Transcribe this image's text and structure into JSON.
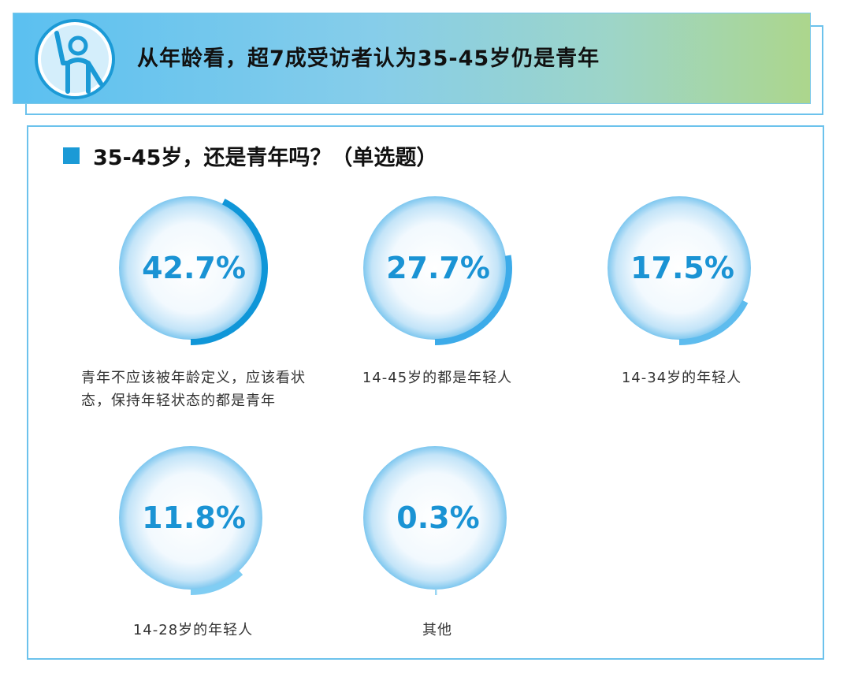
{
  "header": {
    "title": "从年龄看，超7成受访者认为35-45岁仍是青年",
    "icon": "waving-person-icon"
  },
  "question": {
    "title": "35-45岁，还是青年吗？（单选题）"
  },
  "colors": {
    "ring_accent": "#1b9ad6",
    "pct_text": "#1a93d4"
  },
  "chart_data": {
    "type": "pie",
    "title": "35-45岁，还是青年吗？（单选题）",
    "unit": "%",
    "items": [
      {
        "label": "青年不应该被年龄定义，应该看状态，保持年轻状态的都是青年",
        "value": 42.7,
        "value_label": "42.7%",
        "color": "#0f96d8"
      },
      {
        "label": "14-45岁的都是年轻人",
        "value": 27.7,
        "value_label": "27.7%",
        "color": "#3cabe9"
      },
      {
        "label": "14-34岁的年轻人",
        "value": 17.5,
        "value_label": "17.5%",
        "color": "#5ebcee"
      },
      {
        "label": "14-28岁的年轻人",
        "value": 11.8,
        "value_label": "11.8%",
        "color": "#80cdf3"
      },
      {
        "label": "其他",
        "value": 0.3,
        "value_label": "0.3%",
        "color": "#9ad6f3"
      }
    ]
  }
}
